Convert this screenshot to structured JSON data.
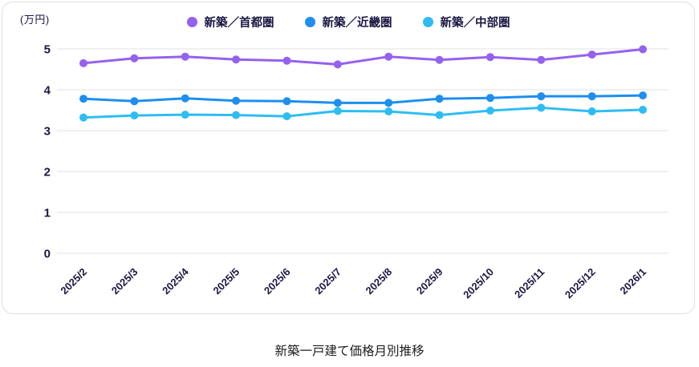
{
  "chart_data": {
    "type": "line",
    "unit_label": "(万円)",
    "title": "新築一戸建て価格月別推移",
    "categories": [
      "2025/2",
      "2025/3",
      "2025/4",
      "2025/5",
      "2025/6",
      "2025/7",
      "2025/8",
      "2025/9",
      "2025/10",
      "2025/11",
      "2025/12",
      "2026/1"
    ],
    "series": [
      {
        "name": "新築／首都圏",
        "color": "#9561EE",
        "values": [
          4.65,
          4.77,
          4.81,
          4.74,
          4.71,
          4.62,
          4.81,
          4.73,
          4.8,
          4.73,
          4.86,
          4.99
        ]
      },
      {
        "name": "新築／近畿圏",
        "color": "#1E8EEF",
        "values": [
          3.78,
          3.72,
          3.79,
          3.73,
          3.72,
          3.68,
          3.68,
          3.78,
          3.8,
          3.84,
          3.84,
          3.86
        ]
      },
      {
        "name": "新築／中部圏",
        "color": "#2EBDF2",
        "values": [
          3.32,
          3.37,
          3.39,
          3.38,
          3.35,
          3.48,
          3.47,
          3.38,
          3.49,
          3.56,
          3.47,
          3.51
        ]
      }
    ],
    "ylim": [
      0,
      5
    ],
    "yticks": [
      0,
      1,
      2,
      3,
      4,
      5
    ],
    "grid": true,
    "legend_position": "top",
    "colors": {
      "axis_text": "#1B1743",
      "gridline": "#E7E7EE",
      "card_border": "#DFDFE6",
      "title_text": "#1E1E1E"
    }
  }
}
